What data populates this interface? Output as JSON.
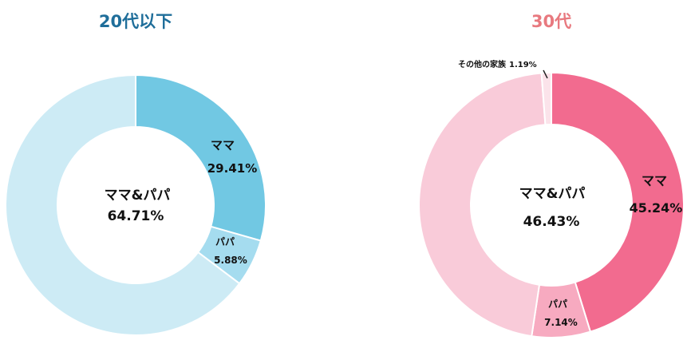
{
  "chart_data": [
    {
      "type": "pie",
      "title": "20代以下",
      "title_color": "#1f6e9a",
      "center": {
        "label": "ママ&パパ",
        "value": "64.71%"
      },
      "slices": [
        {
          "label": "ママ",
          "value": 29.41,
          "display": "29.41%",
          "color": "#71c8e3"
        },
        {
          "label": "パパ",
          "value": 5.88,
          "display": "5.88%",
          "color": "#a5dcef"
        },
        {
          "label": "ママ&パパ",
          "value": 64.71,
          "display": "64.71%",
          "color": "#cdebf5"
        }
      ]
    },
    {
      "type": "pie",
      "title": "30代",
      "title_color": "#e8797f",
      "center": {
        "label": "ママ&パパ",
        "value": "46.43%"
      },
      "slices": [
        {
          "label": "ママ",
          "value": 45.24,
          "display": "45.24%",
          "color": "#f26b8f"
        },
        {
          "label": "パパ",
          "value": 7.14,
          "display": "7.14%",
          "color": "#f7aac0"
        },
        {
          "label": "ママ&パパ",
          "value": 46.43,
          "display": "46.43%",
          "color": "#f9cbd9"
        },
        {
          "label": "その他の家族",
          "value": 1.19,
          "display": "1.19%",
          "color": "#fbe3ea"
        }
      ]
    }
  ]
}
